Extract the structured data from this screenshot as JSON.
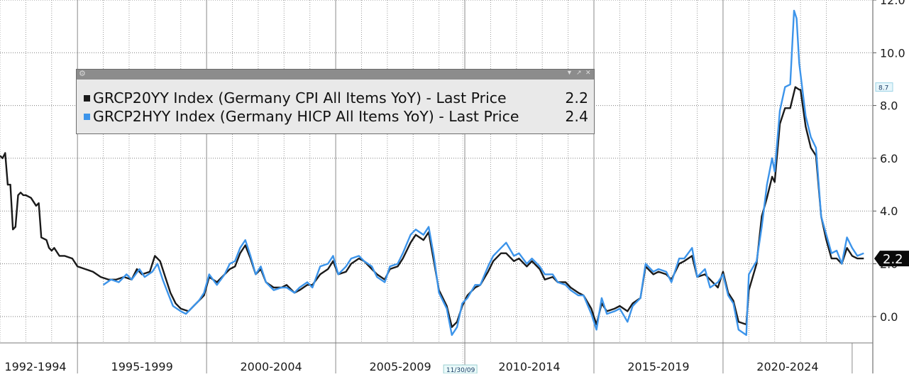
{
  "chart_data": {
    "type": "line",
    "title": "",
    "xlabel": "",
    "ylabel": "",
    "x_range": [
      1992.0,
      2025.8
    ],
    "ylim": [
      -1.0,
      12.0
    ],
    "y_ticks": [
      "0.0",
      "2.0",
      "4.0",
      "6.0",
      "8.0",
      "10.0",
      "12.0"
    ],
    "y_tick_values": [
      0,
      2,
      4,
      6,
      8,
      10,
      12
    ],
    "x_period_labels": [
      "1992-1994",
      "1995-1999",
      "2000-2004",
      "2005-2009",
      "2010-2014",
      "2015-2019",
      "2020-2024"
    ],
    "x_period_bounds": [
      [
        1992.0,
        1995.0
      ],
      [
        1995.0,
        2000.0
      ],
      [
        2000.0,
        2005.0
      ],
      [
        2005.0,
        2010.0
      ],
      [
        2010.0,
        2015.0
      ],
      [
        2015.0,
        2020.0
      ],
      [
        2020.0,
        2025.0
      ]
    ],
    "crosshair_date_label": "11/30/09",
    "crosshair_date": 2009.92,
    "grid": true,
    "legend_position": "top-left",
    "y_axis_side": "right",
    "series": [
      {
        "name": "GRCP20YY Index (Germany CPI All Items YoY) - Last Price",
        "last_value": "2.2",
        "color": "#1a1a1a",
        "points": [
          [
            1992.0,
            6.1
          ],
          [
            1992.1,
            6.0
          ],
          [
            1992.2,
            6.2
          ],
          [
            1992.3,
            5.0
          ],
          [
            1992.4,
            5.0
          ],
          [
            1992.5,
            3.3
          ],
          [
            1992.6,
            3.4
          ],
          [
            1992.7,
            4.6
          ],
          [
            1992.8,
            4.7
          ],
          [
            1992.9,
            4.6
          ],
          [
            1993.0,
            4.6
          ],
          [
            1993.2,
            4.5
          ],
          [
            1993.4,
            4.2
          ],
          [
            1993.5,
            4.3
          ],
          [
            1993.6,
            3.0
          ],
          [
            1993.8,
            2.9
          ],
          [
            1993.9,
            2.6
          ],
          [
            1994.0,
            2.5
          ],
          [
            1994.1,
            2.6
          ],
          [
            1994.3,
            2.3
          ],
          [
            1994.5,
            2.3
          ],
          [
            1994.8,
            2.2
          ],
          [
            1995.0,
            1.9
          ],
          [
            1995.3,
            1.8
          ],
          [
            1995.6,
            1.7
          ],
          [
            1995.9,
            1.5
          ],
          [
            1996.2,
            1.4
          ],
          [
            1996.5,
            1.4
          ],
          [
            1996.8,
            1.5
          ],
          [
            1997.1,
            1.4
          ],
          [
            1997.3,
            1.8
          ],
          [
            1997.5,
            1.6
          ],
          [
            1997.8,
            1.7
          ],
          [
            1998.0,
            2.3
          ],
          [
            1998.2,
            2.1
          ],
          [
            1998.4,
            1.5
          ],
          [
            1998.6,
            0.9
          ],
          [
            1998.8,
            0.5
          ],
          [
            1999.0,
            0.3
          ],
          [
            1999.3,
            0.2
          ],
          [
            1999.5,
            0.4
          ],
          [
            1999.7,
            0.6
          ],
          [
            1999.9,
            0.8
          ],
          [
            2000.1,
            1.5
          ],
          [
            2000.4,
            1.3
          ],
          [
            2000.7,
            1.6
          ],
          [
            2000.9,
            1.8
          ],
          [
            2001.1,
            1.9
          ],
          [
            2001.3,
            2.4
          ],
          [
            2001.5,
            2.7
          ],
          [
            2001.7,
            2.2
          ],
          [
            2001.9,
            1.6
          ],
          [
            2002.1,
            1.8
          ],
          [
            2002.3,
            1.3
          ],
          [
            2002.6,
            1.1
          ],
          [
            2002.9,
            1.1
          ],
          [
            2003.1,
            1.2
          ],
          [
            2003.4,
            0.9
          ],
          [
            2003.6,
            1.0
          ],
          [
            2003.9,
            1.2
          ],
          [
            2004.1,
            1.2
          ],
          [
            2004.4,
            1.6
          ],
          [
            2004.7,
            1.8
          ],
          [
            2004.9,
            2.1
          ],
          [
            2005.1,
            1.6
          ],
          [
            2005.4,
            1.7
          ],
          [
            2005.6,
            2.0
          ],
          [
            2005.9,
            2.2
          ],
          [
            2006.1,
            2.1
          ],
          [
            2006.4,
            1.8
          ],
          [
            2006.6,
            1.6
          ],
          [
            2006.9,
            1.4
          ],
          [
            2007.1,
            1.8
          ],
          [
            2007.4,
            1.9
          ],
          [
            2007.6,
            2.2
          ],
          [
            2007.9,
            2.8
          ],
          [
            2008.1,
            3.1
          ],
          [
            2008.4,
            2.9
          ],
          [
            2008.6,
            3.2
          ],
          [
            2008.8,
            2.1
          ],
          [
            2009.0,
            1.0
          ],
          [
            2009.3,
            0.4
          ],
          [
            2009.5,
            -0.4
          ],
          [
            2009.7,
            -0.2
          ],
          [
            2009.9,
            0.4
          ],
          [
            2010.1,
            0.8
          ],
          [
            2010.4,
            1.1
          ],
          [
            2010.6,
            1.2
          ],
          [
            2010.9,
            1.7
          ],
          [
            2011.1,
            2.1
          ],
          [
            2011.4,
            2.4
          ],
          [
            2011.6,
            2.4
          ],
          [
            2011.9,
            2.1
          ],
          [
            2012.1,
            2.2
          ],
          [
            2012.4,
            1.9
          ],
          [
            2012.6,
            2.1
          ],
          [
            2012.9,
            1.8
          ],
          [
            2013.1,
            1.4
          ],
          [
            2013.4,
            1.5
          ],
          [
            2013.6,
            1.3
          ],
          [
            2013.9,
            1.3
          ],
          [
            2014.1,
            1.1
          ],
          [
            2014.4,
            0.9
          ],
          [
            2014.6,
            0.8
          ],
          [
            2014.9,
            0.3
          ],
          [
            2015.1,
            -0.3
          ],
          [
            2015.3,
            0.5
          ],
          [
            2015.5,
            0.2
          ],
          [
            2015.8,
            0.3
          ],
          [
            2016.0,
            0.4
          ],
          [
            2016.3,
            0.2
          ],
          [
            2016.5,
            0.5
          ],
          [
            2016.8,
            0.7
          ],
          [
            2017.0,
            1.9
          ],
          [
            2017.3,
            1.6
          ],
          [
            2017.5,
            1.7
          ],
          [
            2017.8,
            1.6
          ],
          [
            2018.0,
            1.4
          ],
          [
            2018.3,
            2.0
          ],
          [
            2018.5,
            2.1
          ],
          [
            2018.8,
            2.3
          ],
          [
            2019.0,
            1.5
          ],
          [
            2019.3,
            1.6
          ],
          [
            2019.5,
            1.4
          ],
          [
            2019.8,
            1.1
          ],
          [
            2020.0,
            1.7
          ],
          [
            2020.2,
            0.9
          ],
          [
            2020.4,
            0.6
          ],
          [
            2020.6,
            -0.2
          ],
          [
            2020.9,
            -0.3
          ],
          [
            2021.0,
            1.0
          ],
          [
            2021.3,
            2.0
          ],
          [
            2021.5,
            3.8
          ],
          [
            2021.7,
            4.5
          ],
          [
            2021.9,
            5.3
          ],
          [
            2022.0,
            5.1
          ],
          [
            2022.2,
            7.3
          ],
          [
            2022.4,
            7.9
          ],
          [
            2022.6,
            7.9
          ],
          [
            2022.8,
            8.7
          ],
          [
            2022.95,
            8.6
          ],
          [
            2023.0,
            8.6
          ],
          [
            2023.2,
            7.2
          ],
          [
            2023.4,
            6.4
          ],
          [
            2023.6,
            6.1
          ],
          [
            2023.8,
            3.8
          ],
          [
            2024.0,
            2.9
          ],
          [
            2024.2,
            2.2
          ],
          [
            2024.4,
            2.2
          ],
          [
            2024.6,
            2.0
          ],
          [
            2024.8,
            2.6
          ],
          [
            2025.0,
            2.3
          ],
          [
            2025.2,
            2.2
          ],
          [
            2025.45,
            2.2
          ]
        ]
      },
      {
        "name": "GRCP2HYY Index (Germany HICP All Items YoY) - Last Price",
        "last_value": "2.4",
        "color": "#3c94ea",
        "points": [
          [
            1996.0,
            1.2
          ],
          [
            1996.3,
            1.4
          ],
          [
            1996.6,
            1.3
          ],
          [
            1996.9,
            1.6
          ],
          [
            1997.1,
            1.4
          ],
          [
            1997.4,
            1.8
          ],
          [
            1997.6,
            1.5
          ],
          [
            1997.9,
            1.7
          ],
          [
            1998.1,
            2.0
          ],
          [
            1998.3,
            1.4
          ],
          [
            1998.5,
            0.9
          ],
          [
            1998.7,
            0.4
          ],
          [
            1999.0,
            0.2
          ],
          [
            1999.2,
            0.1
          ],
          [
            1999.5,
            0.4
          ],
          [
            1999.7,
            0.6
          ],
          [
            1999.9,
            0.9
          ],
          [
            2000.1,
            1.6
          ],
          [
            2000.4,
            1.2
          ],
          [
            2000.7,
            1.6
          ],
          [
            2000.9,
            2.0
          ],
          [
            2001.1,
            2.1
          ],
          [
            2001.3,
            2.6
          ],
          [
            2001.5,
            2.9
          ],
          [
            2001.7,
            2.3
          ],
          [
            2001.9,
            1.6
          ],
          [
            2002.1,
            1.9
          ],
          [
            2002.3,
            1.3
          ],
          [
            2002.6,
            1.0
          ],
          [
            2002.9,
            1.1
          ],
          [
            2003.1,
            1.1
          ],
          [
            2003.4,
            0.9
          ],
          [
            2003.6,
            1.1
          ],
          [
            2003.9,
            1.3
          ],
          [
            2004.1,
            1.1
          ],
          [
            2004.4,
            1.9
          ],
          [
            2004.7,
            2.0
          ],
          [
            2004.9,
            2.3
          ],
          [
            2005.1,
            1.6
          ],
          [
            2005.4,
            1.9
          ],
          [
            2005.6,
            2.2
          ],
          [
            2005.9,
            2.3
          ],
          [
            2006.1,
            2.1
          ],
          [
            2006.4,
            1.9
          ],
          [
            2006.6,
            1.5
          ],
          [
            2006.9,
            1.3
          ],
          [
            2007.1,
            1.9
          ],
          [
            2007.4,
            2.0
          ],
          [
            2007.6,
            2.4
          ],
          [
            2007.9,
            3.1
          ],
          [
            2008.1,
            3.3
          ],
          [
            2008.4,
            3.1
          ],
          [
            2008.6,
            3.4
          ],
          [
            2008.8,
            2.3
          ],
          [
            2009.0,
            0.9
          ],
          [
            2009.3,
            0.3
          ],
          [
            2009.5,
            -0.7
          ],
          [
            2009.7,
            -0.4
          ],
          [
            2009.9,
            0.5
          ],
          [
            2010.1,
            0.7
          ],
          [
            2010.4,
            1.2
          ],
          [
            2010.6,
            1.2
          ],
          [
            2010.9,
            1.9
          ],
          [
            2011.1,
            2.3
          ],
          [
            2011.4,
            2.6
          ],
          [
            2011.6,
            2.8
          ],
          [
            2011.9,
            2.3
          ],
          [
            2012.1,
            2.4
          ],
          [
            2012.4,
            2.0
          ],
          [
            2012.6,
            2.2
          ],
          [
            2012.9,
            1.9
          ],
          [
            2013.1,
            1.6
          ],
          [
            2013.4,
            1.6
          ],
          [
            2013.6,
            1.3
          ],
          [
            2013.9,
            1.2
          ],
          [
            2014.1,
            1.0
          ],
          [
            2014.4,
            0.8
          ],
          [
            2014.6,
            0.8
          ],
          [
            2014.9,
            0.1
          ],
          [
            2015.1,
            -0.5
          ],
          [
            2015.3,
            0.7
          ],
          [
            2015.5,
            0.1
          ],
          [
            2015.8,
            0.2
          ],
          [
            2016.0,
            0.3
          ],
          [
            2016.3,
            -0.2
          ],
          [
            2016.5,
            0.4
          ],
          [
            2016.8,
            0.7
          ],
          [
            2017.0,
            2.0
          ],
          [
            2017.3,
            1.7
          ],
          [
            2017.5,
            1.8
          ],
          [
            2017.8,
            1.7
          ],
          [
            2018.0,
            1.3
          ],
          [
            2018.3,
            2.2
          ],
          [
            2018.5,
            2.2
          ],
          [
            2018.8,
            2.6
          ],
          [
            2019.0,
            1.5
          ],
          [
            2019.3,
            1.8
          ],
          [
            2019.5,
            1.1
          ],
          [
            2019.8,
            1.3
          ],
          [
            2020.0,
            1.6
          ],
          [
            2020.2,
            0.8
          ],
          [
            2020.4,
            0.5
          ],
          [
            2020.6,
            -0.5
          ],
          [
            2020.9,
            -0.7
          ],
          [
            2021.0,
            1.6
          ],
          [
            2021.3,
            2.1
          ],
          [
            2021.5,
            3.4
          ],
          [
            2021.7,
            5.0
          ],
          [
            2021.9,
            6.0
          ],
          [
            2022.0,
            5.5
          ],
          [
            2022.2,
            7.8
          ],
          [
            2022.4,
            8.7
          ],
          [
            2022.6,
            8.8
          ],
          [
            2022.75,
            11.6
          ],
          [
            2022.85,
            11.3
          ],
          [
            2022.95,
            9.6
          ],
          [
            2023.0,
            9.2
          ],
          [
            2023.2,
            7.6
          ],
          [
            2023.4,
            6.8
          ],
          [
            2023.6,
            6.4
          ],
          [
            2023.8,
            3.8
          ],
          [
            2024.0,
            3.1
          ],
          [
            2024.2,
            2.4
          ],
          [
            2024.4,
            2.5
          ],
          [
            2024.6,
            2.0
          ],
          [
            2024.8,
            3.0
          ],
          [
            2025.0,
            2.6
          ],
          [
            2025.2,
            2.3
          ],
          [
            2025.45,
            2.4
          ]
        ]
      }
    ],
    "overlay_tags": [
      "8.7"
    ],
    "overlay_tag_values": [
      8.7
    ],
    "last_price_tag": "2.2",
    "last_price_tag_value": 2.2
  }
}
